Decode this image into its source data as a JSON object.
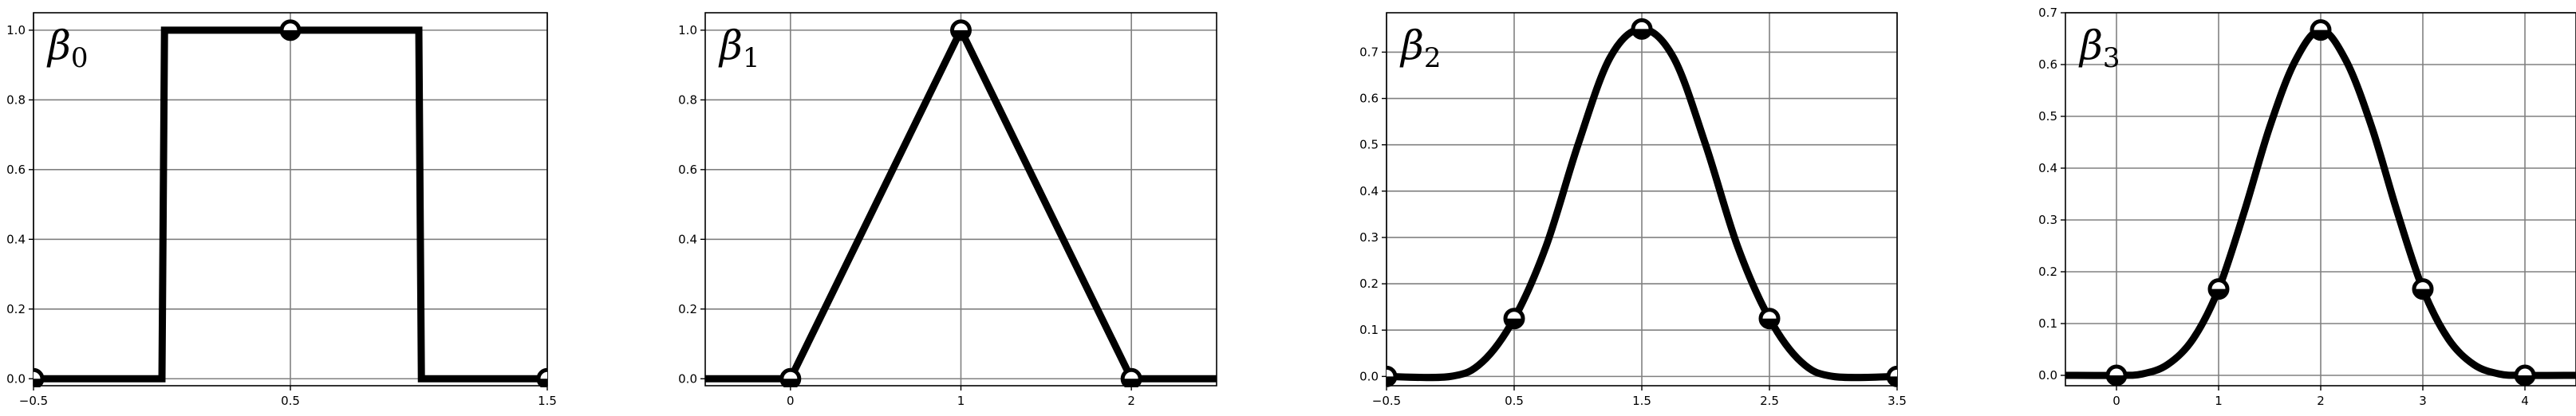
{
  "colors": {
    "curve": "#000000",
    "grid": "#808080",
    "background": "#ffffff"
  },
  "chart_data": [
    {
      "type": "line",
      "title": "β0",
      "title_base": "β",
      "title_sub": "0",
      "grid": true,
      "xlim": [
        -0.5,
        1.5
      ],
      "ylim": [
        -0.02,
        1.05
      ],
      "xticks": [
        -0.5,
        0.5,
        1.5
      ],
      "xtick_labels": [
        "−0.5",
        "0.5",
        "1.5"
      ],
      "yticks": [
        0.0,
        0.2,
        0.4,
        0.6,
        0.8,
        1.0
      ],
      "ytick_labels": [
        "0.0",
        "0.2",
        "0.4",
        "0.6",
        "0.8",
        "1.0"
      ],
      "x": [
        -0.5,
        0.0,
        0.01,
        1.0,
        1.01,
        1.5
      ],
      "y": [
        0,
        0,
        1,
        1,
        0,
        0
      ],
      "markers": {
        "x": [
          -0.5,
          0.5,
          1.5
        ],
        "y": [
          0,
          1,
          0
        ]
      }
    },
    {
      "type": "line",
      "title": "β1",
      "title_base": "β",
      "title_sub": "1",
      "grid": true,
      "xlim": [
        -0.5,
        2.5
      ],
      "ylim": [
        -0.02,
        1.05
      ],
      "xticks": [
        0,
        1,
        2
      ],
      "xtick_labels": [
        "0",
        "1",
        "2"
      ],
      "yticks": [
        0.0,
        0.2,
        0.4,
        0.6,
        0.8,
        1.0
      ],
      "ytick_labels": [
        "0.0",
        "0.2",
        "0.4",
        "0.6",
        "0.8",
        "1.0"
      ],
      "x": [
        -0.5,
        0,
        1,
        2,
        2.5
      ],
      "y": [
        0,
        0,
        1,
        0,
        0
      ],
      "markers": {
        "x": [
          0,
          1,
          2
        ],
        "y": [
          0,
          1,
          0
        ]
      }
    },
    {
      "type": "line",
      "title": "β2",
      "title_base": "β",
      "title_sub": "2",
      "grid": true,
      "xlim": [
        -0.5,
        3.5
      ],
      "ylim": [
        -0.02,
        0.785
      ],
      "xticks": [
        -0.5,
        0.5,
        1.5,
        2.5,
        3.5
      ],
      "xtick_labels": [
        "−0.5",
        "0.5",
        "1.5",
        "2.5",
        "3.5"
      ],
      "yticks": [
        0.0,
        0.1,
        0.2,
        0.3,
        0.4,
        0.5,
        0.6,
        0.7
      ],
      "ytick_labels": [
        "0.0",
        "0.1",
        "0.2",
        "0.3",
        "0.4",
        "0.5",
        "0.6",
        "0.7"
      ],
      "x": [
        -0.5,
        0,
        0.25,
        0.5,
        0.75,
        1.0,
        1.25,
        1.5,
        1.75,
        2.0,
        2.25,
        2.5,
        2.75,
        3.0,
        3.5
      ],
      "y": [
        0,
        0,
        0.031,
        0.125,
        0.281,
        0.5,
        0.6875,
        0.75,
        0.6875,
        0.5,
        0.281,
        0.125,
        0.031,
        0,
        0
      ],
      "markers": {
        "x": [
          -0.5,
          0.5,
          1.5,
          2.5,
          3.5
        ],
        "y": [
          0,
          0.125,
          0.75,
          0.125,
          0
        ]
      }
    },
    {
      "type": "line",
      "title": "β3",
      "title_base": "β",
      "title_sub": "3",
      "grid": true,
      "xlim": [
        -0.5,
        4.5
      ],
      "ylim": [
        -0.02,
        0.7
      ],
      "xticks": [
        0,
        1,
        2,
        3,
        4
      ],
      "xtick_labels": [
        "0",
        "1",
        "2",
        "3",
        "4"
      ],
      "yticks": [
        0.0,
        0.1,
        0.2,
        0.3,
        0.4,
        0.5,
        0.6,
        0.7
      ],
      "ytick_labels": [
        "0.0",
        "0.1",
        "0.2",
        "0.3",
        "0.4",
        "0.5",
        "0.6",
        "0.7"
      ],
      "x": [
        -0.5,
        0,
        0.25,
        0.5,
        0.75,
        1.0,
        1.25,
        1.5,
        1.75,
        2.0,
        2.25,
        2.5,
        2.75,
        3.0,
        3.25,
        3.5,
        3.75,
        4.0,
        4.5
      ],
      "y": [
        0,
        0,
        0.0026,
        0.0208,
        0.0703,
        0.1667,
        0.3151,
        0.4792,
        0.6068,
        0.6667,
        0.6068,
        0.4792,
        0.3151,
        0.1667,
        0.0703,
        0.0208,
        0.0026,
        0,
        0
      ],
      "markers": {
        "x": [
          0,
          1,
          2,
          3,
          4
        ],
        "y": [
          0,
          0.1667,
          0.6667,
          0.1667,
          0
        ]
      }
    }
  ]
}
